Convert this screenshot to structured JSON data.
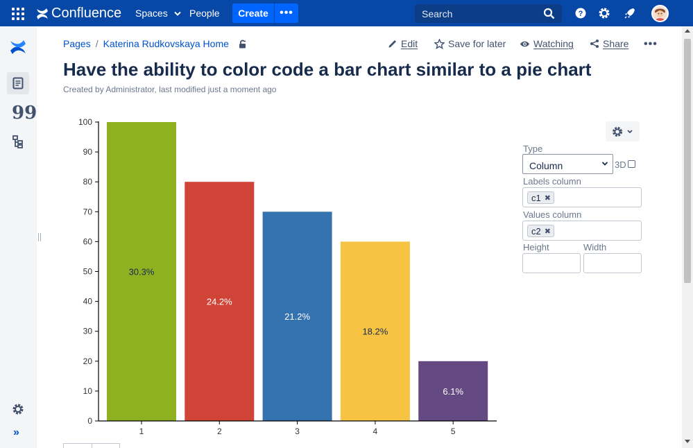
{
  "topnav": {
    "brand": "Confluence",
    "spaces_label": "Spaces",
    "people_label": "People",
    "create_label": "Create",
    "more_label": "•••",
    "search_placeholder": "Search",
    "icons": [
      "apps-icon",
      "help-icon",
      "settings-icon",
      "notifications-icon",
      "avatar"
    ]
  },
  "rail": {
    "expand_label": "»",
    "quote_label": "99"
  },
  "breadcrumb": {
    "items": [
      "Pages",
      "Katerina Rudkovskaya Home"
    ],
    "separator": "/"
  },
  "actions": {
    "edit": "Edit",
    "save": "Save for later",
    "watching": "Watching",
    "share": "Share",
    "more": "•••"
  },
  "page": {
    "title": "Have the ability to color code a bar chart similar to a pie chart",
    "byline": "Created by Administrator, last modified just a moment ago"
  },
  "chart_data": {
    "type": "bar",
    "title": "",
    "xlabel": "",
    "ylabel": "",
    "categories": [
      "1",
      "2",
      "3",
      "4",
      "5"
    ],
    "values": [
      100,
      80,
      70,
      60,
      20
    ],
    "data_labels": [
      "30.3%",
      "24.2%",
      "21.2%",
      "18.2%",
      "6.1%"
    ],
    "colors": [
      "#8db121",
      "#d04437",
      "#3572b0",
      "#f6c342",
      "#654982"
    ],
    "label_colors": [
      "#172b4d",
      "#ffffff",
      "#ffffff",
      "#172b4d",
      "#ffffff"
    ],
    "ylim": [
      0,
      100
    ],
    "yticks": [
      0,
      10,
      20,
      30,
      40,
      50,
      60,
      70,
      80,
      90,
      100
    ],
    "grid": false,
    "legend": "none"
  },
  "panel": {
    "type_label": "Type",
    "type_value": "Column",
    "threed_label": "3D",
    "threed_checked": false,
    "labels_column_label": "Labels column",
    "labels_column_tag": "c1",
    "values_column_label": "Values column",
    "values_column_tag": "c2",
    "height_label": "Height",
    "width_label": "Width",
    "tag_remove": "✖"
  },
  "colors": {
    "nav_bg": "#0747a6",
    "create_bg": "#0065ff",
    "link": "#0052cc"
  }
}
